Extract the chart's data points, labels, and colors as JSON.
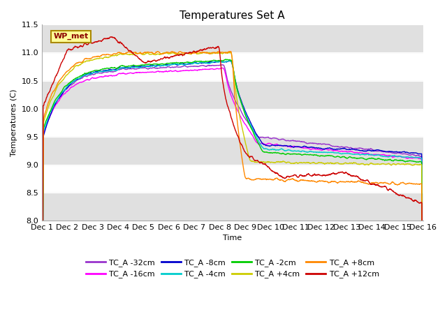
{
  "title": "Temperatures Set A",
  "xlabel": "Time",
  "ylabel": "Temperatures (C)",
  "ylim": [
    8.0,
    11.5
  ],
  "xlim": [
    0,
    15
  ],
  "xtick_labels": [
    "Dec 1",
    "Dec 2",
    "Dec 3",
    "Dec 4",
    "Dec 5",
    "Dec 6",
    "Dec 7",
    "Dec 8",
    "Dec 9",
    "Dec 10",
    "Dec 11",
    "Dec 12",
    "Dec 13",
    "Dec 14",
    "Dec 15",
    "Dec 16"
  ],
  "ytick_values": [
    8.0,
    8.5,
    9.0,
    9.5,
    10.0,
    10.5,
    11.0,
    11.5
  ],
  "series": [
    {
      "label": "TC_A -32cm",
      "color": "#9933CC"
    },
    {
      "label": "TC_A -16cm",
      "color": "#FF00FF"
    },
    {
      "label": "TC_A -8cm",
      "color": "#0000CC"
    },
    {
      "label": "TC_A -4cm",
      "color": "#00CCCC"
    },
    {
      "label": "TC_A -2cm",
      "color": "#00CC00"
    },
    {
      "label": "TC_A +4cm",
      "color": "#CCCC00"
    },
    {
      "label": "TC_A +8cm",
      "color": "#FF8800"
    },
    {
      "label": "TC_A +12cm",
      "color": "#CC0000"
    }
  ],
  "wp_met_box_color": "#FFFF99",
  "wp_met_border_color": "#AA8800",
  "background_color": "#ffffff",
  "grid_band_color": "#e0e0e0",
  "title_fontsize": 11,
  "axis_fontsize": 8,
  "legend_fontsize": 8
}
